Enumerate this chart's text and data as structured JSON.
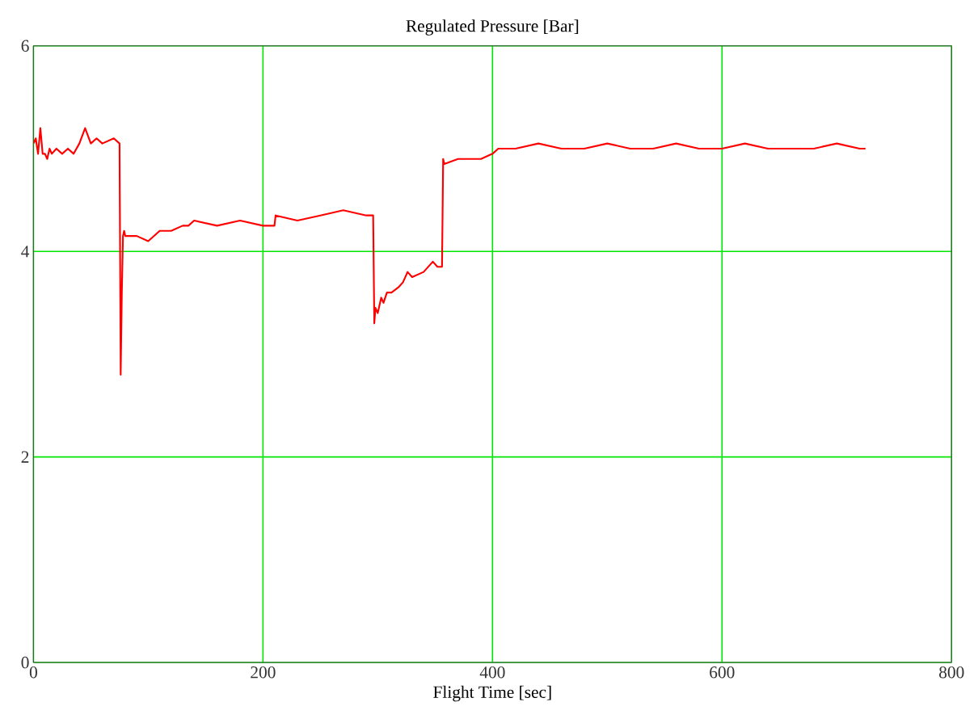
{
  "chart_data": {
    "type": "line",
    "title": "Regulated Pressure [Bar]",
    "xlabel": "Flight Time [sec]",
    "x": [
      0,
      2,
      4,
      6,
      8,
      10,
      12,
      14,
      16,
      20,
      25,
      30,
      35,
      40,
      45,
      50,
      55,
      60,
      70,
      75,
      76,
      77,
      78,
      79,
      80,
      90,
      100,
      110,
      120,
      130,
      135,
      140,
      160,
      180,
      200,
      210,
      211,
      230,
      250,
      270,
      290,
      296,
      297,
      298,
      300,
      303,
      305,
      308,
      312,
      318,
      322,
      326,
      330,
      340,
      348,
      352,
      354,
      356,
      357,
      358,
      370,
      380,
      390,
      400,
      405,
      420,
      440,
      460,
      480,
      500,
      520,
      540,
      560,
      580,
      600,
      620,
      640,
      660,
      680,
      700,
      720,
      725
    ],
    "series": [
      {
        "color": "#ff0000",
        "values": [
          5.05,
          5.1,
          4.95,
          5.2,
          4.95,
          4.95,
          4.9,
          5.0,
          4.95,
          5.0,
          4.95,
          5.0,
          4.95,
          5.05,
          5.2,
          5.05,
          5.1,
          5.05,
          5.1,
          5.05,
          2.8,
          3.6,
          4.15,
          4.2,
          4.15,
          4.15,
          4.1,
          4.2,
          4.2,
          4.25,
          4.25,
          4.3,
          4.25,
          4.3,
          4.25,
          4.25,
          4.35,
          4.3,
          4.35,
          4.4,
          4.35,
          4.35,
          3.3,
          3.45,
          3.4,
          3.55,
          3.5,
          3.6,
          3.6,
          3.65,
          3.7,
          3.8,
          3.75,
          3.8,
          3.9,
          3.85,
          3.85,
          3.85,
          4.9,
          4.85,
          4.9,
          4.9,
          4.9,
          4.95,
          5.0,
          5.0,
          5.05,
          5.0,
          5.0,
          5.05,
          5.0,
          5.0,
          5.05,
          5.0,
          5.0,
          5.05,
          5.0,
          5.0,
          5.0,
          5.05,
          5.0,
          5.0
        ]
      }
    ],
    "xlim": [
      0,
      800
    ],
    "ylim": [
      0,
      6
    ],
    "xticks": [
      0,
      200,
      400,
      600,
      800
    ],
    "yticks": [
      0,
      2,
      4,
      6
    ],
    "grid": true
  }
}
